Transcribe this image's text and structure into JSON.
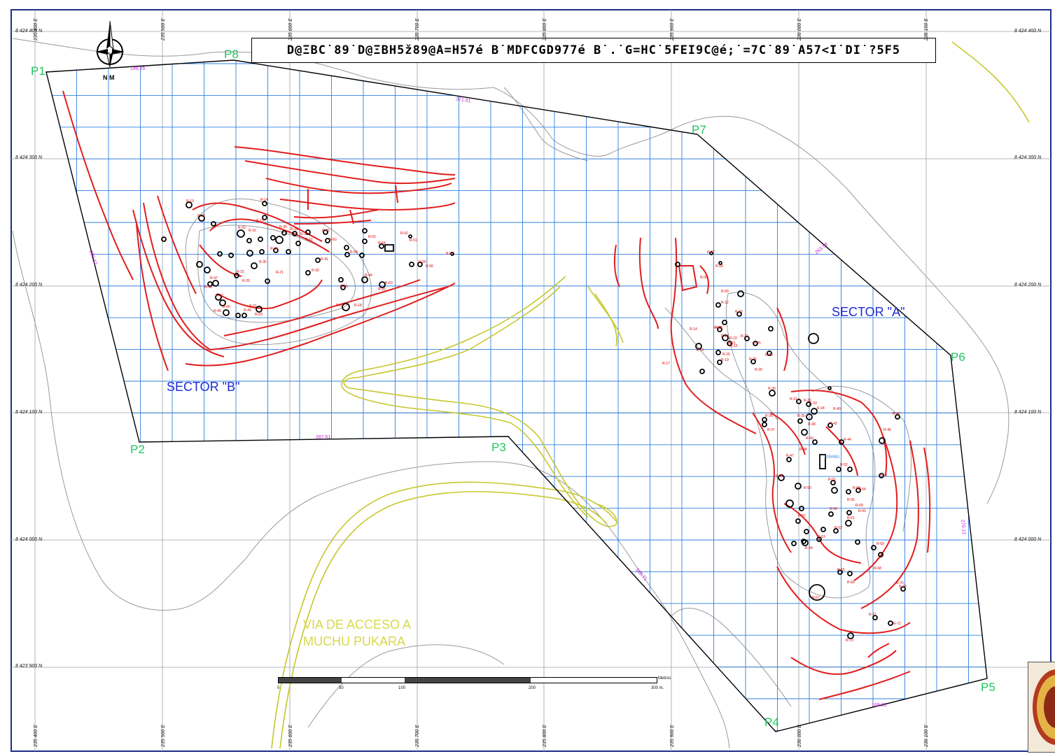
{
  "title": "D@ΞBC˙89˙D@ΞBH5ž89@A=H57é B˙MDFCGD977é B˙.˙G=HC˙5FEI9C@é;˙=7C˙89˙A57<I˙DI˙?5F5",
  "north_label": "N M",
  "points": [
    "P1",
    "P2",
    "P3",
    "P4",
    "P5",
    "P6",
    "P7",
    "P8"
  ],
  "sectors": {
    "a": "SECTOR \"A\"",
    "b": "SECTOR \"B\""
  },
  "access_road": {
    "line1": "VIA DE ACCESO A",
    "line2": "MUCHU PUKARA"
  },
  "northings": [
    "8 424 400 N",
    "8 424 300 N",
    "8 424 200 N",
    "8 424 100 N",
    "8 424 000 N",
    "8 423 900 N"
  ],
  "eastings": [
    "235 400 E",
    "235 500 E",
    "235 600 E",
    "235 700 E",
    "235 800 E",
    "235 900 E",
    "236 000 E",
    "236 100 E"
  ],
  "boundary_lengths": [
    "146.95",
    "371.61",
    "263.58",
    "270.12",
    "169.66",
    "380.71",
    "287.61",
    "280.12"
  ],
  "structure_labels_b": [
    "R-13",
    "R-14",
    "R-12",
    "R-15",
    "R-16",
    "R-33",
    "R-36",
    "R-38",
    "R-39",
    "R-40",
    "R-61",
    "R-60",
    "R-64",
    "R-62",
    "R-58",
    "R-52",
    "R-51",
    "R-55",
    "R-56",
    "R-57",
    "R-35",
    "R-34",
    "R-41",
    "R-21",
    "R-22",
    "R-20",
    "R-30",
    "R-42",
    "R-06",
    "R-05",
    "R-44",
    "R-63",
    "R-50",
    "R-49",
    "R-03",
    "R-01",
    "R-02",
    "R-18",
    "R-47",
    "R-48",
    "R-46"
  ],
  "structure_labels_a": [
    "R-07",
    "R-08",
    "R-06",
    "R-09",
    "R-12",
    "R-10",
    "R-11",
    "R-14",
    "R-13",
    "R-16",
    "R-15",
    "R-17",
    "R-18",
    "R-22",
    "R-21",
    "R-20",
    "R-19",
    "R-24",
    "R-25",
    "R-26",
    "R-29",
    "R-28",
    "R-30",
    "R-31",
    "R-32",
    "R-33",
    "R-34",
    "R-35",
    "R-36",
    "R-37",
    "R-38",
    "R-40",
    "R-42",
    "R-43",
    "R-44",
    "R-45",
    "R-46",
    "R-47",
    "R-48",
    "R-49",
    "R-50",
    "R-51",
    "R-52",
    "R-53",
    "R-54",
    "R-55",
    "R-56",
    "R-57",
    "R-58",
    "R-59",
    "R-60",
    "R-61",
    "R-62",
    "R-63",
    "R-64",
    "R-65",
    "R-66",
    "R-67",
    "R-68",
    "R-69",
    "R-70",
    "R-71",
    "R-72",
    "R-73",
    "R-74",
    "USHNU"
  ],
  "scale": {
    "ticks": [
      "0",
      "50",
      "100",
      "200",
      "300 m."
    ],
    "unit": "Metros"
  },
  "colors": {
    "frame": "#1c2f8a",
    "grid_coord": "#9aa0a6",
    "survey_grid": "#2f7fe0",
    "boundary": "#000000",
    "contour": "#9a9a9a",
    "terrace": "#e11d1d",
    "road": "#c7c72e",
    "point_label": "#22c55e",
    "sector_label": "#1d2bd6",
    "length_label": "#c026d3"
  }
}
